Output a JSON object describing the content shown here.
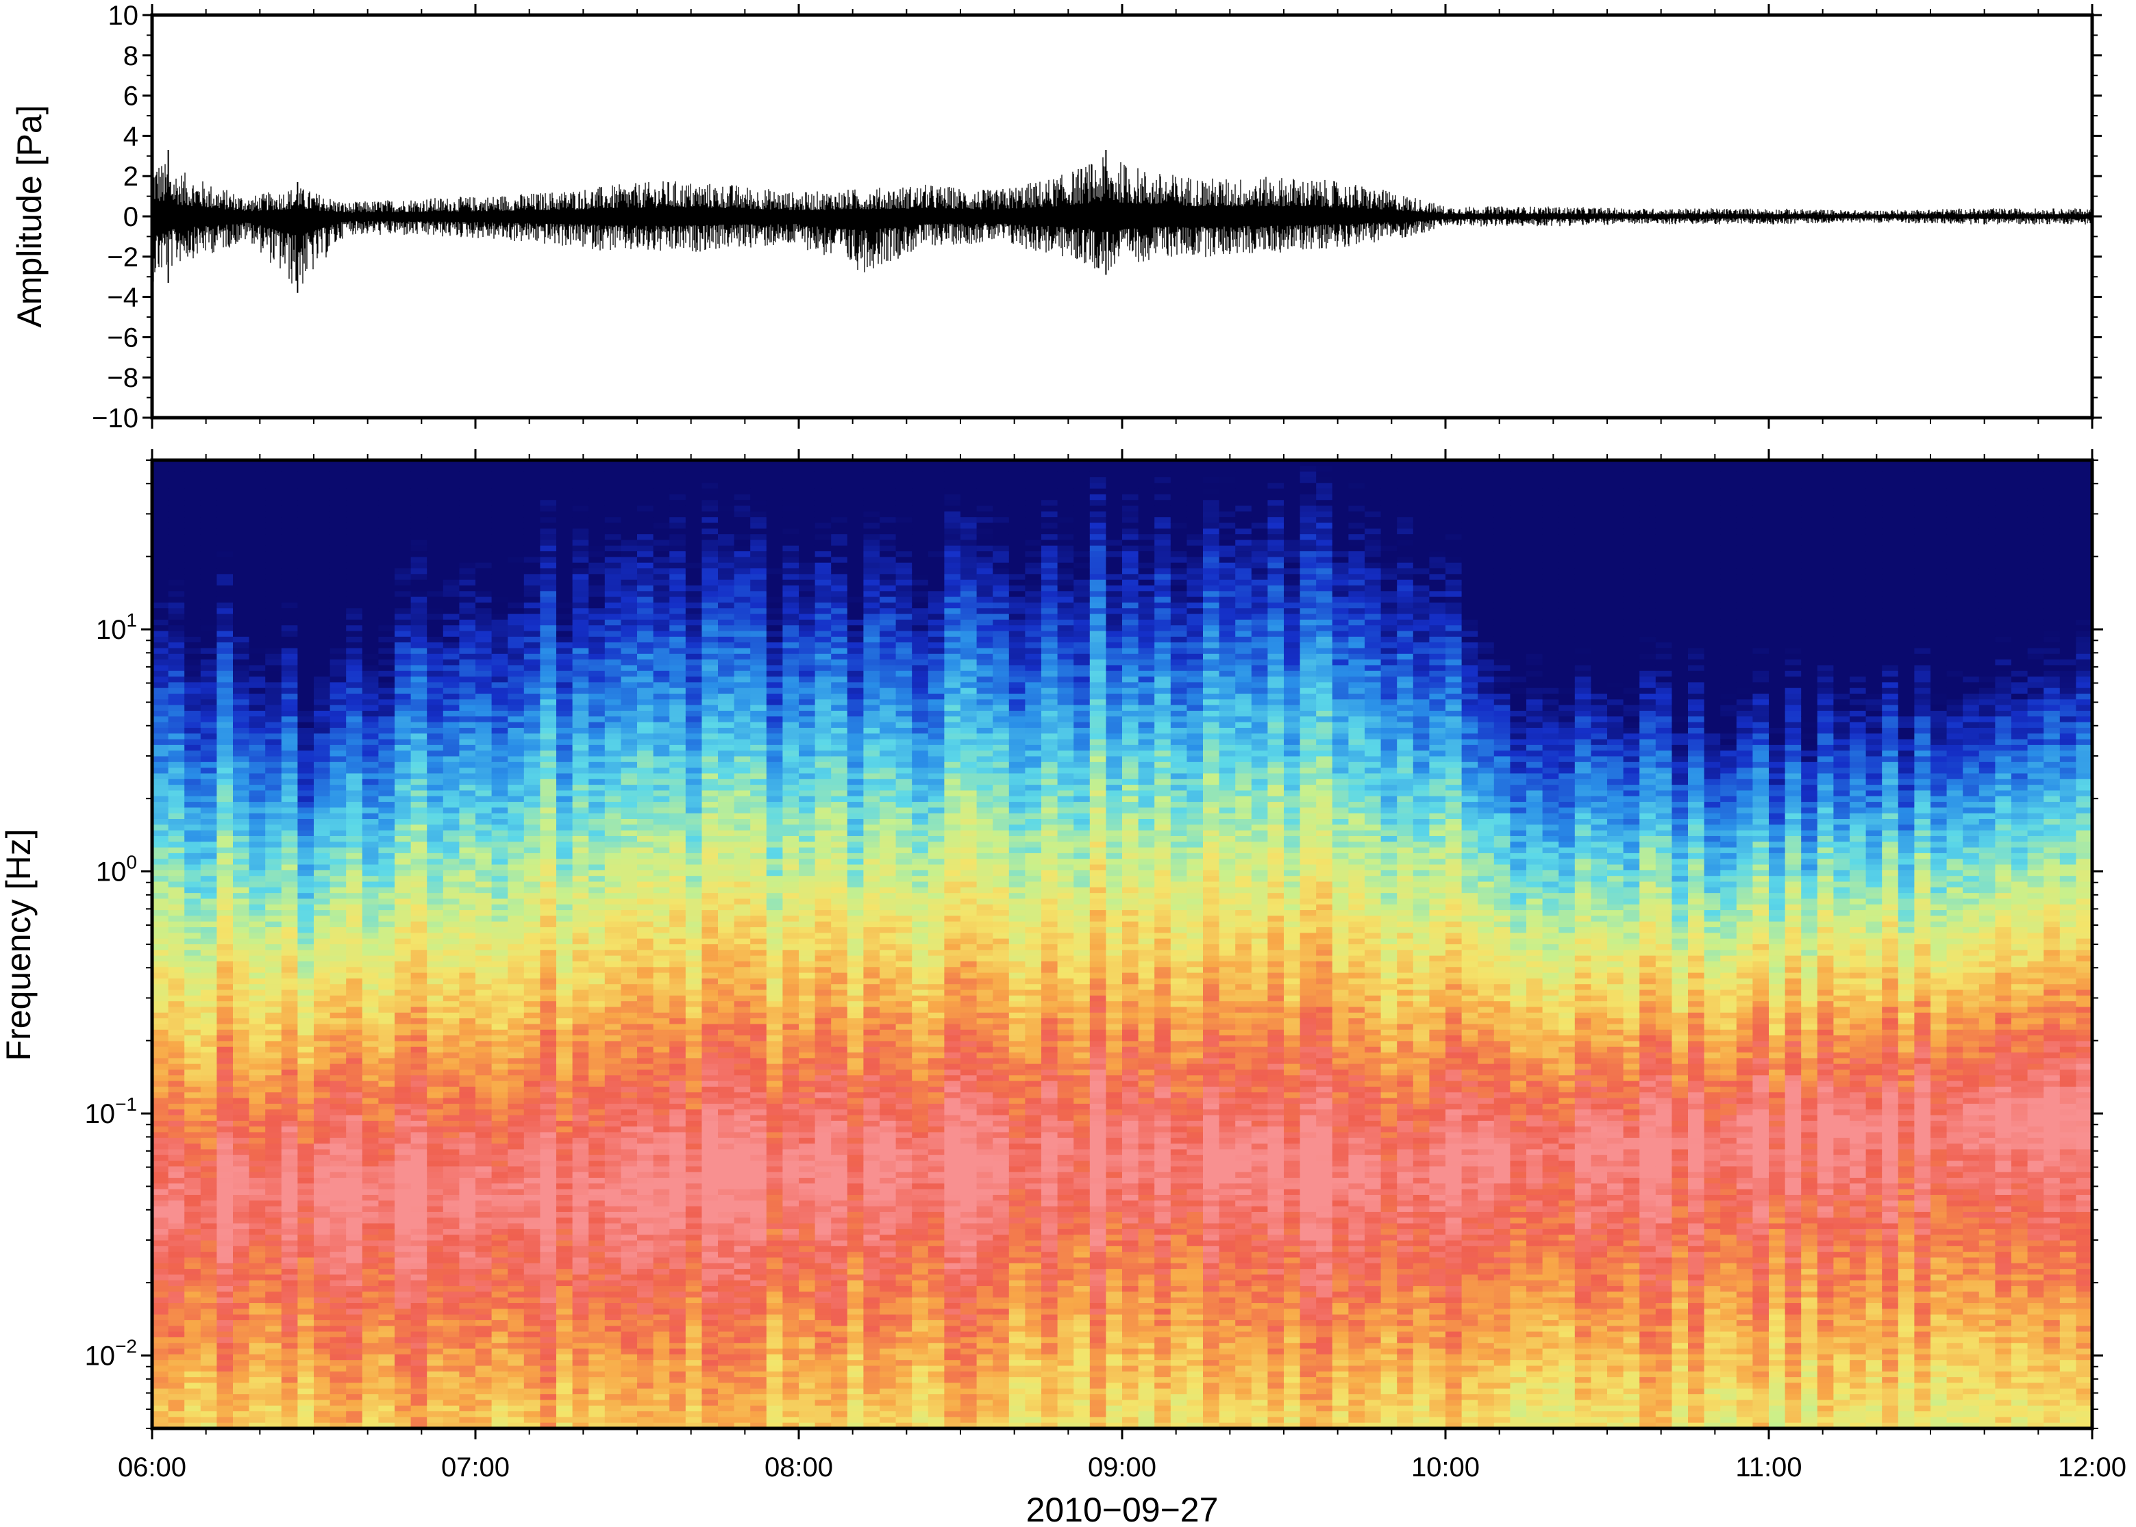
{
  "chart_data": [
    {
      "type": "line",
      "panel": "waveform",
      "xlabel": "",
      "ylabel": "Amplitude [Pa]",
      "ylim": [
        -10,
        10
      ],
      "yticks": [
        -10,
        -8,
        -6,
        -4,
        -2,
        0,
        2,
        4,
        6,
        8,
        10
      ],
      "ytick_labels": [
        "−10",
        "−8",
        "−6",
        "−4",
        "−2",
        "0",
        "2",
        "4",
        "6",
        "8",
        "10"
      ],
      "xlim_hours": [
        6,
        12
      ],
      "envelope": {
        "x_hours": [
          6.0,
          6.1,
          6.2,
          6.3,
          6.45,
          6.6,
          6.8,
          7.0,
          7.2,
          7.45,
          7.6,
          7.8,
          8.0,
          8.2,
          8.4,
          8.6,
          8.8,
          8.95,
          9.1,
          9.3,
          9.5,
          9.7,
          9.9,
          10.0,
          10.3,
          10.6,
          11.0,
          11.3,
          11.6,
          12.0
        ],
        "max": [
          3.0,
          2.2,
          1.5,
          1.0,
          1.5,
          0.7,
          0.9,
          1.0,
          1.2,
          1.6,
          1.8,
          1.6,
          1.2,
          1.4,
          1.6,
          1.3,
          2.0,
          3.0,
          2.2,
          1.9,
          2.0,
          1.7,
          1.0,
          0.5,
          0.5,
          0.4,
          0.4,
          0.3,
          0.4,
          0.4
        ],
        "min": [
          -3.3,
          -2.2,
          -1.8,
          -1.2,
          -3.8,
          -0.9,
          -1.0,
          -1.1,
          -1.4,
          -1.8,
          -1.9,
          -1.6,
          -1.5,
          -2.8,
          -1.5,
          -1.3,
          -2.0,
          -2.8,
          -2.1,
          -2.0,
          -1.8,
          -1.5,
          -1.0,
          -0.5,
          -0.5,
          -0.4,
          -0.4,
          -0.3,
          -0.4,
          -0.4
        ]
      },
      "spikes": [
        {
          "x_hours": 6.45,
          "max": 1.7,
          "min": -3.8
        },
        {
          "x_hours": 6.05,
          "max": 3.3,
          "min": -3.3
        },
        {
          "x_hours": 8.95,
          "max": 3.3,
          "min": -2.9
        }
      ]
    },
    {
      "type": "heatmap",
      "panel": "spectrogram",
      "xlabel": "2010−09−27",
      "ylabel": "Frequency [Hz]",
      "y_scale": "log",
      "ylim": [
        0.005,
        50
      ],
      "yticks": [
        0.01,
        0.1,
        1,
        10
      ],
      "ytick_labels": [
        {
          "base": "10",
          "exp": "−2"
        },
        {
          "base": "10",
          "exp": "−1"
        },
        {
          "base": "10",
          "exp": "0"
        },
        {
          "base": "10",
          "exp": "1"
        }
      ],
      "x_ticks": [
        "06:00",
        "07:00",
        "08:00",
        "09:00",
        "10:00",
        "11:00",
        "12:00"
      ],
      "xlim_hours": [
        6,
        12
      ],
      "colormap": [
        "#0a0a6e",
        "#1530c8",
        "#2a8fe8",
        "#5cd8e8",
        "#c8f08c",
        "#f4e46a",
        "#f8a848",
        "#f06050",
        "#f89090"
      ],
      "power_ridge": {
        "x_hours": [
          6.0,
          6.4,
          6.5,
          7.0,
          7.5,
          8.0,
          8.5,
          9.0,
          9.5,
          9.9,
          10.1,
          10.5,
          11.0,
          11.5,
          12.0
        ],
        "upper_edge_hz": [
          15,
          9,
          5,
          16,
          22,
          20,
          22,
          28,
          30,
          25,
          8,
          6,
          5,
          6,
          7
        ],
        "peak_hz": [
          0.04,
          0.05,
          0.05,
          0.045,
          0.05,
          0.06,
          0.06,
          0.07,
          0.06,
          0.05,
          0.07,
          0.07,
          0.08,
          0.09,
          0.1
        ]
      }
    }
  ]
}
